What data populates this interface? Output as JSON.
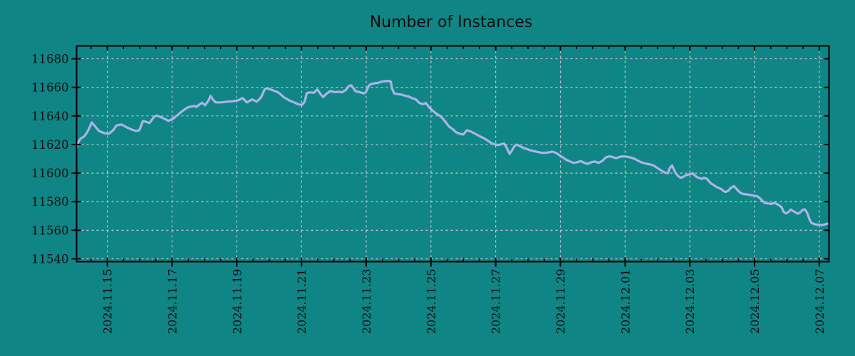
{
  "title": "Number of Instances",
  "colors": {
    "background": "#0f8585",
    "line": "#adb3ea",
    "grid": "#c9c9c9",
    "axis": "#000000",
    "text": "#0d0d0d"
  },
  "chart_data": {
    "type": "line",
    "title": "Number of Instances",
    "xlabel": "",
    "ylabel": "",
    "legend": "none",
    "grid": true,
    "x_unit": "days since 2024-11-14 00:00",
    "x_axis_note": "date axis from 2024.11.14 to 2024.12.07, labeled every 2 days, minor ticks every 0.5 day",
    "xlim": [
      0.05,
      23.3
    ],
    "ylim": [
      11538,
      11689
    ],
    "minor_x_step": 0.5,
    "y_ticks": [
      {
        "v": 11540,
        "label": "11540"
      },
      {
        "v": 11560,
        "label": "11560"
      },
      {
        "v": 11580,
        "label": "11580"
      },
      {
        "v": 11600,
        "label": "11600"
      },
      {
        "v": 11620,
        "label": "11620"
      },
      {
        "v": 11640,
        "label": "11640"
      },
      {
        "v": 11660,
        "label": "11660"
      },
      {
        "v": 11680,
        "label": "11680"
      }
    ],
    "x_ticks": [
      {
        "d": 1,
        "label": "2024.11.15"
      },
      {
        "d": 3,
        "label": "2024.11.17"
      },
      {
        "d": 5,
        "label": "2024.11.19"
      },
      {
        "d": 7,
        "label": "2024.11.21"
      },
      {
        "d": 9,
        "label": "2024.11.23"
      },
      {
        "d": 11,
        "label": "2024.11.25"
      },
      {
        "d": 13,
        "label": "2024.11.27"
      },
      {
        "d": 15,
        "label": "2024.11.29"
      },
      {
        "d": 17,
        "label": "2024.12.01"
      },
      {
        "d": 19,
        "label": "2024.12.03"
      },
      {
        "d": 21,
        "label": "2024.12.05"
      },
      {
        "d": 23,
        "label": "2024.12.07"
      }
    ],
    "series": [
      {
        "name": "Number of Instances",
        "points": [
          [
            0.03,
            11616.5
          ],
          [
            0.1,
            11621.5
          ],
          [
            0.17,
            11624
          ],
          [
            0.3,
            11626
          ],
          [
            0.41,
            11630
          ],
          [
            0.52,
            11635.5
          ],
          [
            0.63,
            11632.5
          ],
          [
            0.74,
            11629.5
          ],
          [
            0.89,
            11628
          ],
          [
            1.05,
            11627.5
          ],
          [
            1.18,
            11630
          ],
          [
            1.29,
            11633.5
          ],
          [
            1.44,
            11634
          ],
          [
            1.6,
            11632
          ],
          [
            1.75,
            11630.5
          ],
          [
            1.88,
            11629.5
          ],
          [
            1.99,
            11630
          ],
          [
            2.1,
            11636.5
          ],
          [
            2.21,
            11635.8
          ],
          [
            2.3,
            11635
          ],
          [
            2.43,
            11639
          ],
          [
            2.52,
            11640.3
          ],
          [
            2.65,
            11639.2
          ],
          [
            2.81,
            11637.5
          ],
          [
            2.89,
            11636.5
          ],
          [
            3.03,
            11638
          ],
          [
            3.16,
            11640.5
          ],
          [
            3.31,
            11643.3
          ],
          [
            3.47,
            11645.8
          ],
          [
            3.6,
            11646.7
          ],
          [
            3.69,
            11647
          ],
          [
            3.75,
            11646.3
          ],
          [
            3.86,
            11648.3
          ],
          [
            3.93,
            11649.2
          ],
          [
            4.02,
            11647.5
          ],
          [
            4.13,
            11651
          ],
          [
            4.19,
            11654
          ],
          [
            4.28,
            11651
          ],
          [
            4.35,
            11649.5
          ],
          [
            4.52,
            11649.5
          ],
          [
            4.7,
            11650
          ],
          [
            4.87,
            11650.3
          ],
          [
            5.05,
            11651
          ],
          [
            5.18,
            11652.5
          ],
          [
            5.31,
            11649.5
          ],
          [
            5.47,
            11651.5
          ],
          [
            5.62,
            11650
          ],
          [
            5.75,
            11653
          ],
          [
            5.86,
            11658.5
          ],
          [
            5.93,
            11659.4
          ],
          [
            6.11,
            11658
          ],
          [
            6.28,
            11656.5
          ],
          [
            6.46,
            11653
          ],
          [
            6.61,
            11651
          ],
          [
            6.77,
            11649.5
          ],
          [
            6.9,
            11648.2
          ],
          [
            7.01,
            11647.7
          ],
          [
            7.1,
            11650
          ],
          [
            7.16,
            11655.9
          ],
          [
            7.27,
            11656.5
          ],
          [
            7.38,
            11656.2
          ],
          [
            7.49,
            11658.5
          ],
          [
            7.6,
            11655
          ],
          [
            7.67,
            11653.2
          ],
          [
            7.78,
            11655.7
          ],
          [
            7.89,
            11657.4
          ],
          [
            8.04,
            11656.6
          ],
          [
            8.15,
            11656.9
          ],
          [
            8.26,
            11656.6
          ],
          [
            8.37,
            11658.2
          ],
          [
            8.46,
            11660.9
          ],
          [
            8.53,
            11661.5
          ],
          [
            8.59,
            11659.9
          ],
          [
            8.66,
            11657.4
          ],
          [
            8.75,
            11656.9
          ],
          [
            8.86,
            11656.2
          ],
          [
            8.92,
            11655.7
          ],
          [
            8.99,
            11656.6
          ],
          [
            9.08,
            11661.2
          ],
          [
            9.14,
            11662.3
          ],
          [
            9.25,
            11662.8
          ],
          [
            9.36,
            11663.1
          ],
          [
            9.47,
            11664
          ],
          [
            9.58,
            11664.3
          ],
          [
            9.69,
            11664.5
          ],
          [
            9.76,
            11664
          ],
          [
            9.8,
            11659
          ],
          [
            9.87,
            11655.7
          ],
          [
            9.98,
            11655.2
          ],
          [
            10.09,
            11654.9
          ],
          [
            10.2,
            11654.1
          ],
          [
            10.31,
            11653.6
          ],
          [
            10.42,
            11652.4
          ],
          [
            10.53,
            11651.6
          ],
          [
            10.64,
            11649.1
          ],
          [
            10.75,
            11648.2
          ],
          [
            10.84,
            11649.1
          ],
          [
            10.95,
            11645.8
          ],
          [
            11.06,
            11643.5
          ],
          [
            11.17,
            11641.5
          ],
          [
            11.28,
            11640
          ],
          [
            11.37,
            11638
          ],
          [
            11.45,
            11635.8
          ],
          [
            11.56,
            11632.5
          ],
          [
            11.67,
            11630.8
          ],
          [
            11.78,
            11628.5
          ],
          [
            11.89,
            11627.5
          ],
          [
            12.0,
            11627
          ],
          [
            12.11,
            11630
          ],
          [
            12.22,
            11629.2
          ],
          [
            12.33,
            11628
          ],
          [
            12.44,
            11626.6
          ],
          [
            12.55,
            11625.3
          ],
          [
            12.66,
            11624.1
          ],
          [
            12.77,
            11622.5
          ],
          [
            12.88,
            11620.8
          ],
          [
            12.99,
            11620
          ],
          [
            13.1,
            11619.7
          ],
          [
            13.19,
            11620.3
          ],
          [
            13.26,
            11620.8
          ],
          [
            13.32,
            11618.7
          ],
          [
            13.43,
            11613.4
          ],
          [
            13.5,
            11615.8
          ],
          [
            13.59,
            11619.2
          ],
          [
            13.65,
            11620
          ],
          [
            13.76,
            11618.7
          ],
          [
            13.87,
            11617.5
          ],
          [
            13.98,
            11616.7
          ],
          [
            14.09,
            11615.8
          ],
          [
            14.2,
            11615.3
          ],
          [
            14.31,
            11614.7
          ],
          [
            14.42,
            11614.2
          ],
          [
            14.53,
            11614.2
          ],
          [
            14.64,
            11614.5
          ],
          [
            14.75,
            11615
          ],
          [
            14.86,
            11614.2
          ],
          [
            14.97,
            11612.5
          ],
          [
            15.08,
            11610.9
          ],
          [
            15.19,
            11609.2
          ],
          [
            15.3,
            11608.1
          ],
          [
            15.41,
            11607.1
          ],
          [
            15.52,
            11607.6
          ],
          [
            15.63,
            11608.4
          ],
          [
            15.74,
            11607.1
          ],
          [
            15.85,
            11606.4
          ],
          [
            15.96,
            11607.6
          ],
          [
            16.07,
            11608.1
          ],
          [
            16.18,
            11607.1
          ],
          [
            16.29,
            11608.4
          ],
          [
            16.4,
            11610.9
          ],
          [
            16.51,
            11611.7
          ],
          [
            16.62,
            11611.2
          ],
          [
            16.73,
            11610.4
          ],
          [
            16.84,
            11611.4
          ],
          [
            16.95,
            11611.7
          ],
          [
            17.06,
            11611.4
          ],
          [
            17.17,
            11610.9
          ],
          [
            17.28,
            11610.1
          ],
          [
            17.39,
            11608.8
          ],
          [
            17.5,
            11607.5
          ],
          [
            17.66,
            11606.5
          ],
          [
            17.79,
            11606
          ],
          [
            17.9,
            11605.1
          ],
          [
            18.01,
            11603.4
          ],
          [
            18.12,
            11601.8
          ],
          [
            18.23,
            11600.4
          ],
          [
            18.32,
            11599.8
          ],
          [
            18.38,
            11603.4
          ],
          [
            18.45,
            11605.4
          ],
          [
            18.49,
            11603.4
          ],
          [
            18.56,
            11600.1
          ],
          [
            18.65,
            11597.6
          ],
          [
            18.71,
            11596.8
          ],
          [
            18.78,
            11597.1
          ],
          [
            18.87,
            11598.4
          ],
          [
            18.93,
            11598.8
          ],
          [
            19.0,
            11599.2
          ],
          [
            19.09,
            11599.8
          ],
          [
            19.15,
            11598.4
          ],
          [
            19.22,
            11597.1
          ],
          [
            19.31,
            11596.4
          ],
          [
            19.37,
            11595.9
          ],
          [
            19.44,
            11596.8
          ],
          [
            19.53,
            11595.9
          ],
          [
            19.59,
            11594.3
          ],
          [
            19.66,
            11592.6
          ],
          [
            19.75,
            11591.4
          ],
          [
            19.81,
            11590.4
          ],
          [
            19.88,
            11589.8
          ],
          [
            19.97,
            11588.8
          ],
          [
            20.03,
            11587.6
          ],
          [
            20.1,
            11586.8
          ],
          [
            20.19,
            11587.6
          ],
          [
            20.25,
            11589.3
          ],
          [
            20.32,
            11590.4
          ],
          [
            20.36,
            11590.9
          ],
          [
            20.43,
            11589.3
          ],
          [
            20.52,
            11587.1
          ],
          [
            20.58,
            11585.9
          ],
          [
            20.65,
            11585.4
          ],
          [
            20.76,
            11585.1
          ],
          [
            20.87,
            11584.7
          ],
          [
            20.98,
            11584.2
          ],
          [
            21.09,
            11583.7
          ],
          [
            21.18,
            11582.1
          ],
          [
            21.25,
            11580.4
          ],
          [
            21.31,
            11579.2
          ],
          [
            21.42,
            11578.7
          ],
          [
            21.53,
            11578.4
          ],
          [
            21.62,
            11579.2
          ],
          [
            21.68,
            11578.4
          ],
          [
            21.75,
            11577.6
          ],
          [
            21.84,
            11575.9
          ],
          [
            21.9,
            11572.8
          ],
          [
            21.97,
            11571.8
          ],
          [
            22.06,
            11573
          ],
          [
            22.12,
            11574.5
          ],
          [
            22.19,
            11573.5
          ],
          [
            22.28,
            11572.3
          ],
          [
            22.34,
            11571.6
          ],
          [
            22.41,
            11572.5
          ],
          [
            22.5,
            11574.5
          ],
          [
            22.56,
            11574.5
          ],
          [
            22.63,
            11572
          ],
          [
            22.7,
            11567.5
          ],
          [
            22.76,
            11565
          ],
          [
            22.85,
            11564.2
          ],
          [
            22.94,
            11563.9
          ],
          [
            23.0,
            11563.8
          ],
          [
            23.07,
            11563.6
          ],
          [
            23.16,
            11563.9
          ],
          [
            23.22,
            11564.4
          ],
          [
            23.28,
            11564.7
          ]
        ]
      }
    ]
  }
}
